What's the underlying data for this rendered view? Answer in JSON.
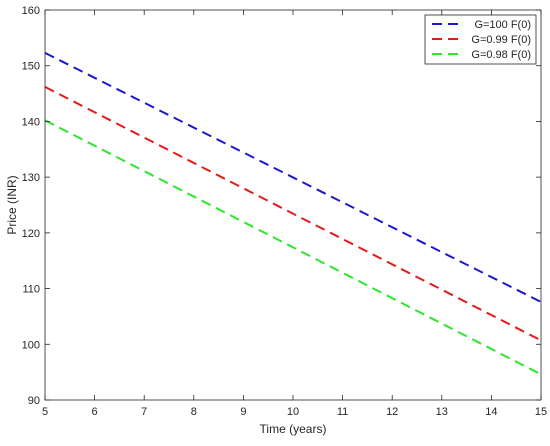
{
  "chart_data": {
    "type": "line",
    "title": "",
    "xlabel": "Time (years)",
    "ylabel": "Price (INR)",
    "xlim": [
      5,
      15
    ],
    "ylim": [
      90,
      160
    ],
    "xticks": [
      5,
      6,
      7,
      8,
      9,
      10,
      11,
      12,
      13,
      14,
      15
    ],
    "yticks": [
      90,
      100,
      110,
      120,
      130,
      140,
      150,
      160
    ],
    "grid": false,
    "legend_position": "top-right",
    "series": [
      {
        "name": "G=100 F(0)",
        "color": "#1a1acc",
        "line_style": "dashed",
        "x": [
          5,
          15
        ],
        "y": [
          152.3,
          107.6
        ]
      },
      {
        "name": "G=0.99 F(0)",
        "color": "#e61a1a",
        "line_style": "dashed",
        "x": [
          5,
          15
        ],
        "y": [
          146.2,
          100.7
        ]
      },
      {
        "name": "G=0.98 F(0)",
        "color": "#2ee62e",
        "line_style": "dashed",
        "x": [
          5,
          15
        ],
        "y": [
          140.2,
          94.6
        ]
      }
    ]
  }
}
